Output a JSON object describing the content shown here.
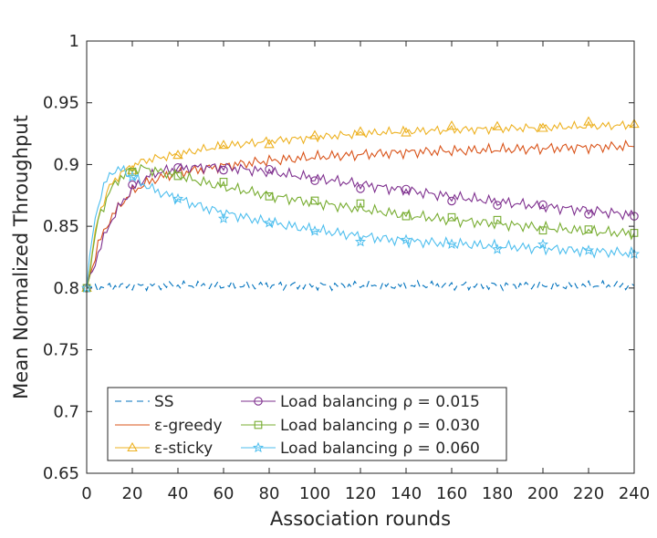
{
  "chart_data": {
    "type": "line",
    "title": "",
    "xlabel": "Association rounds",
    "ylabel": "Mean Normalized Throughput",
    "xlim": [
      0,
      240
    ],
    "ylim": [
      0.65,
      1.0
    ],
    "xticks": [
      0,
      20,
      40,
      60,
      80,
      100,
      120,
      140,
      160,
      180,
      200,
      220,
      240
    ],
    "yticks": [
      0.65,
      0.7,
      0.75,
      0.8,
      0.85,
      0.9,
      0.95,
      1.0
    ],
    "xtick_labels": [
      "0",
      "20",
      "40",
      "60",
      "80",
      "100",
      "120",
      "140",
      "160",
      "180",
      "200",
      "220",
      "240"
    ],
    "ytick_labels": [
      "0.65",
      "0.7",
      "0.75",
      "0.8",
      "0.85",
      "0.9",
      "0.95",
      "1"
    ],
    "legend_position": "bottom-left",
    "series": [
      {
        "name": "SS",
        "label": "SS",
        "color": "#0072BD",
        "style": "dashed",
        "marker": "none",
        "x": [
          0,
          20,
          40,
          60,
          80,
          100,
          120,
          140,
          160,
          180,
          200,
          220,
          240
        ],
        "values": [
          0.8,
          0.802,
          0.802,
          0.802,
          0.802,
          0.802,
          0.802,
          0.802,
          0.802,
          0.802,
          0.802,
          0.802,
          0.802
        ]
      },
      {
        "name": "ε-greedy",
        "label": "ε-greedy",
        "color": "#D95319",
        "style": "solid",
        "marker": "none",
        "x": [
          0,
          5,
          10,
          15,
          20,
          25,
          30,
          35,
          40,
          50,
          60,
          80,
          100,
          120,
          140,
          160,
          180,
          200,
          220,
          240
        ],
        "values": [
          0.8,
          0.835,
          0.855,
          0.868,
          0.878,
          0.884,
          0.888,
          0.891,
          0.893,
          0.896,
          0.899,
          0.903,
          0.906,
          0.908,
          0.91,
          0.911,
          0.912,
          0.913,
          0.914,
          0.915
        ]
      },
      {
        "name": "ε-sticky",
        "label": "ε-sticky",
        "color": "#EDB120",
        "style": "solid",
        "marker": "triangle",
        "x": [
          0,
          5,
          10,
          15,
          20,
          25,
          30,
          40,
          50,
          60,
          80,
          100,
          120,
          140,
          160,
          180,
          200,
          220,
          240
        ],
        "values": [
          0.8,
          0.858,
          0.882,
          0.893,
          0.899,
          0.903,
          0.905,
          0.908,
          0.912,
          0.915,
          0.919,
          0.922,
          0.925,
          0.927,
          0.928,
          0.929,
          0.93,
          0.931,
          0.932
        ]
      },
      {
        "name": "Load balancing ρ = 0.015",
        "label": "Load balancing ρ = 0.015",
        "color": "#7E2F8E",
        "style": "solid",
        "marker": "circle",
        "x": [
          0,
          5,
          10,
          15,
          20,
          25,
          30,
          40,
          50,
          60,
          80,
          100,
          120,
          140,
          160,
          180,
          200,
          220,
          240
        ],
        "values": [
          0.8,
          0.828,
          0.852,
          0.868,
          0.88,
          0.888,
          0.893,
          0.897,
          0.898,
          0.898,
          0.894,
          0.889,
          0.884,
          0.879,
          0.874,
          0.87,
          0.866,
          0.863,
          0.859
        ]
      },
      {
        "name": "Load balancing ρ = 0.030",
        "label": "Load balancing ρ = 0.030",
        "color": "#77AC30",
        "style": "solid",
        "marker": "square",
        "x": [
          0,
          5,
          10,
          15,
          20,
          25,
          30,
          40,
          50,
          60,
          80,
          100,
          120,
          140,
          160,
          180,
          200,
          220,
          240
        ],
        "values": [
          0.8,
          0.855,
          0.878,
          0.89,
          0.896,
          0.897,
          0.895,
          0.891,
          0.886,
          0.882,
          0.875,
          0.869,
          0.864,
          0.859,
          0.855,
          0.852,
          0.849,
          0.846,
          0.844
        ]
      },
      {
        "name": "Load balancing ρ = 0.060",
        "label": "Load balancing ρ = 0.060",
        "color": "#4DBEEE",
        "style": "solid",
        "marker": "star",
        "x": [
          0,
          3,
          6,
          9,
          12,
          15,
          20,
          25,
          30,
          40,
          50,
          60,
          80,
          100,
          120,
          140,
          160,
          180,
          200,
          220,
          240
        ],
        "values": [
          0.8,
          0.85,
          0.875,
          0.888,
          0.896,
          0.896,
          0.89,
          0.884,
          0.879,
          0.872,
          0.866,
          0.861,
          0.853,
          0.847,
          0.842,
          0.838,
          0.836,
          0.834,
          0.832,
          0.83,
          0.828
        ]
      }
    ]
  }
}
